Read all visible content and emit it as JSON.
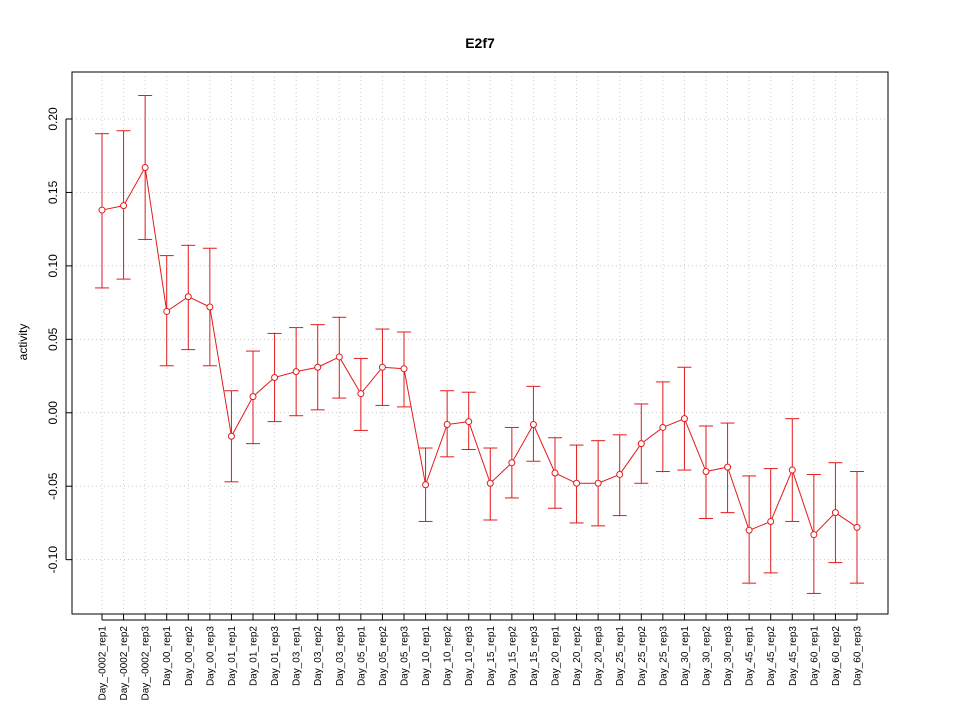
{
  "chart_data": {
    "type": "line",
    "title": "E2f7",
    "xlabel": "",
    "ylabel": "activity",
    "ylim": [
      -0.137,
      0.232
    ],
    "yticks": [
      -0.1,
      -0.05,
      0.0,
      0.05,
      0.1,
      0.15,
      0.2
    ],
    "ytick_labels": [
      "-0.10",
      "-0.05",
      "0.00",
      "0.05",
      "0.10",
      "0.15",
      "0.20"
    ],
    "grid": true,
    "series_color": "#e41a1c",
    "grid_color": "#cccccc",
    "categories": [
      "Day_-0002_rep1",
      "Day_-0002_rep2",
      "Day_-0002_rep3",
      "Day_00_rep1",
      "Day_00_rep2",
      "Day_00_rep3",
      "Day_01_rep1",
      "Day_01_rep2",
      "Day_01_rep3",
      "Day_03_rep1",
      "Day_03_rep2",
      "Day_03_rep3",
      "Day_05_rep1",
      "Day_05_rep2",
      "Day_05_rep3",
      "Day_10_rep1",
      "Day_10_rep2",
      "Day_10_rep3",
      "Day_15_rep1",
      "Day_15_rep2",
      "Day_15_rep3",
      "Day_20_rep1",
      "Day_20_rep2",
      "Day_20_rep3",
      "Day_25_rep1",
      "Day_25_rep2",
      "Day_25_rep3",
      "Day_30_rep1",
      "Day_30_rep2",
      "Day_30_rep3",
      "Day_45_rep1",
      "Day_45_rep2",
      "Day_45_rep3",
      "Day_60_rep1",
      "Day_60_rep2",
      "Day_60_rep3"
    ],
    "values": [
      0.138,
      0.141,
      0.167,
      0.069,
      0.079,
      0.072,
      -0.016,
      0.011,
      0.024,
      0.028,
      0.031,
      0.038,
      0.013,
      0.031,
      0.03,
      -0.049,
      -0.008,
      -0.006,
      -0.048,
      -0.034,
      -0.008,
      -0.041,
      -0.048,
      -0.048,
      -0.042,
      -0.021,
      -0.01,
      -0.004,
      -0.04,
      -0.037,
      -0.08,
      -0.074,
      -0.039,
      -0.083,
      -0.068,
      -0.078
    ],
    "upper": [
      0.19,
      0.192,
      0.216,
      0.107,
      0.114,
      0.112,
      0.015,
      0.042,
      0.054,
      0.058,
      0.06,
      0.065,
      0.037,
      0.057,
      0.055,
      -0.024,
      0.015,
      0.014,
      -0.024,
      -0.01,
      0.018,
      -0.017,
      -0.022,
      -0.019,
      -0.015,
      0.006,
      0.021,
      0.031,
      -0.009,
      -0.007,
      -0.043,
      -0.038,
      -0.004,
      -0.042,
      -0.034,
      -0.04
    ],
    "lower": [
      0.085,
      0.091,
      0.118,
      0.032,
      0.043,
      0.032,
      -0.047,
      -0.021,
      -0.006,
      -0.002,
      0.002,
      0.01,
      -0.012,
      0.005,
      0.004,
      -0.074,
      -0.03,
      -0.025,
      -0.073,
      -0.058,
      -0.033,
      -0.065,
      -0.075,
      -0.077,
      -0.07,
      -0.048,
      -0.04,
      -0.039,
      -0.072,
      -0.068,
      -0.116,
      -0.109,
      -0.074,
      -0.123,
      -0.102,
      -0.116
    ]
  }
}
